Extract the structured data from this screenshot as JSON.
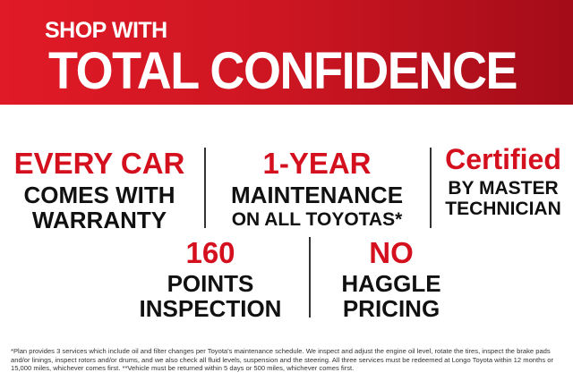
{
  "header": {
    "line1": "SHOP WITH",
    "line2": "TOTAL CONFIDENCE",
    "colors": {
      "red_start": "#e01a26",
      "red_end": "#a30c18"
    }
  },
  "features": [
    {
      "highlight": "EVERY CAR",
      "line1": "COMES WITH",
      "line2": "WARRANTY"
    },
    {
      "highlight": "1-YEAR",
      "line1": "MAINTENANCE",
      "line2": "ON ALL TOYOTAS*"
    },
    {
      "highlight": "Certified",
      "line1": "BY MASTER",
      "line2": "TECHNICIAN"
    },
    {
      "highlight": "160",
      "line1": "POINTS",
      "line2": "INSPECTION"
    },
    {
      "highlight": "NO",
      "line1": "HAGGLE",
      "line2": "PRICING"
    }
  ],
  "accent_color": "#d5101e",
  "disclaimer": "*Plan provides 3 services which include oil and filter changes per Toyota's maintenance schedule. We inspect and adjust the engine oil level, rotate the tires, inspect the brake pads and/or linings, inspect rotors and/or drums, and we also check all fluid levels, suspension and the steering.  All three services must be redeemed at Longo Toyota within 12 months or 15,000 miles, whichever comes first. **Vehicle must be returned within 5 days or 500 miles, whichever comes first."
}
